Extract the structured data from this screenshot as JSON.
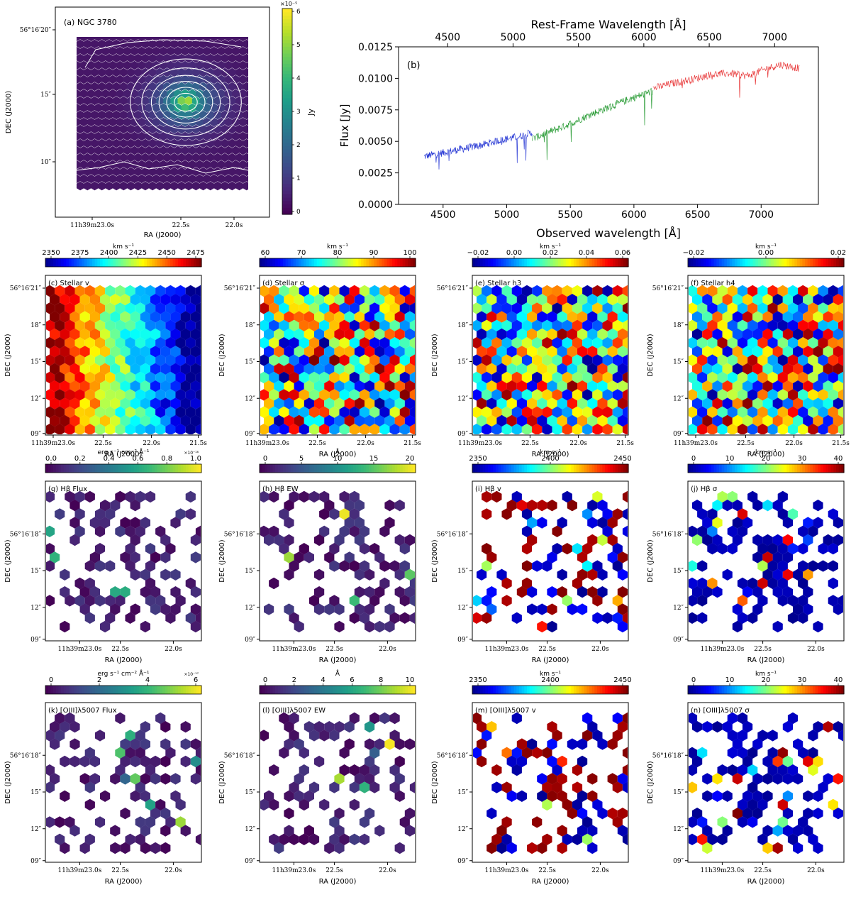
{
  "panel_a": {
    "label": "(a) NGC 3780",
    "xlabel": "RA (J2000)",
    "ylabel": "DEC (J2000)",
    "xticks": [
      "11h39m23.0s",
      "22.5s",
      "22.0s"
    ],
    "yticks": [
      "56°16′20″",
      "15″",
      "10″"
    ],
    "colorbar_label": "Jy",
    "colorbar_exp": "×10⁻⁵",
    "colorbar_ticks": [
      "0",
      "1",
      "2",
      "3",
      "4",
      "5",
      "6"
    ],
    "colormap": "viridis"
  },
  "chart_data": [
    {
      "type": "line",
      "title_top_axis": "Rest-Frame Wavelength [Å]",
      "label": "(b)",
      "xlabel": "Observed wavelength [Å]",
      "ylabel": "Flux [Jy]",
      "xlim": [
        4150,
        7450
      ],
      "ylim": [
        0.0,
        0.0125
      ],
      "xticks": [
        4500,
        5000,
        5500,
        6000,
        6500,
        7000
      ],
      "yticks": [
        0.0,
        0.0025,
        0.005,
        0.0075,
        0.01,
        0.0125
      ],
      "ytick_labels": [
        "0.0000",
        "0.0025",
        "0.0050",
        "0.0075",
        "0.0100",
        "0.0125"
      ],
      "top_xticks": [
        4500,
        5000,
        5500,
        6000,
        6500,
        7000
      ],
      "series": [
        {
          "color": "#2f3fd6",
          "x": [
            4350,
            4500,
            4650,
            4800,
            4950,
            5100,
            5200
          ],
          "y": [
            0.0038,
            0.0041,
            0.0044,
            0.0047,
            0.0051,
            0.0054,
            0.0057
          ]
        },
        {
          "color": "#2e9e3a",
          "x": [
            5200,
            5350,
            5500,
            5650,
            5800,
            5950,
            6150
          ],
          "y": [
            0.0052,
            0.0058,
            0.0064,
            0.0071,
            0.0077,
            0.0083,
            0.009
          ]
        },
        {
          "color": "#e8393a",
          "x": [
            6150,
            6300,
            6450,
            6600,
            6750,
            6900,
            7050,
            7150,
            7300
          ],
          "y": [
            0.0092,
            0.0096,
            0.0099,
            0.0103,
            0.0104,
            0.0102,
            0.0108,
            0.0111,
            0.0108
          ]
        }
      ]
    }
  ],
  "maps": [
    {
      "label": "(c) Stellar v",
      "unit": "km s⁻¹",
      "cb_ticks": [
        "2350",
        "2375",
        "2400",
        "2425",
        "2450",
        "2475"
      ],
      "cmap": "jet",
      "kind": "full",
      "pattern": "gradient",
      "exp": ""
    },
    {
      "label": "(d) Stellar σ",
      "unit": "km s⁻¹",
      "cb_ticks": [
        "60",
        "70",
        "80",
        "90",
        "100"
      ],
      "cmap": "jet",
      "kind": "full",
      "pattern": "noise",
      "exp": ""
    },
    {
      "label": "(e) Stellar h3",
      "unit": "km s⁻¹",
      "cb_ticks": [
        "−0.02",
        "0.00",
        "0.02",
        "0.04",
        "0.06"
      ],
      "cmap": "jet",
      "kind": "full",
      "pattern": "noise",
      "exp": ""
    },
    {
      "label": "(f) Stellar h4",
      "unit": "km s⁻¹",
      "cb_ticks": [
        "−0.02",
        "0.00",
        "0.02"
      ],
      "cmap": "jet",
      "kind": "full",
      "pattern": "noise",
      "exp": ""
    },
    {
      "label": "(g) Hβ Flux",
      "unit": "erg s⁻¹ cm⁻² Å⁻¹",
      "cb_ticks": [
        "0.0",
        "0.2",
        "0.4",
        "0.6",
        "0.8",
        "1.0"
      ],
      "cmap": "viridis",
      "kind": "sparse",
      "pattern": "low",
      "exp": "×10⁻¹⁶"
    },
    {
      "label": "(h) Hβ EW",
      "unit": "Å",
      "cb_ticks": [
        "0",
        "5",
        "10",
        "15",
        "20"
      ],
      "cmap": "viridis",
      "kind": "sparse",
      "pattern": "low",
      "exp": ""
    },
    {
      "label": "(i) Hβ v",
      "unit": "km s⁻¹",
      "cb_ticks": [
        "2350",
        "2400",
        "2450"
      ],
      "cmap": "jet",
      "kind": "sparse",
      "pattern": "bimodal",
      "exp": ""
    },
    {
      "label": "(j) Hβ σ",
      "unit": "km s⁻¹",
      "cb_ticks": [
        "0",
        "10",
        "20",
        "30",
        "40"
      ],
      "cmap": "jet",
      "kind": "sparse",
      "pattern": "lowjet",
      "exp": ""
    },
    {
      "label": "(k) [OIII]λ5007 Flux",
      "unit": "erg s⁻¹ cm⁻² Å⁻¹",
      "cb_ticks": [
        "0",
        "2",
        "4",
        "6"
      ],
      "cmap": "viridis",
      "kind": "sparse",
      "pattern": "low",
      "exp": "×10⁻¹⁷"
    },
    {
      "label": "(l) [OIII]λ5007 EW",
      "unit": "Å",
      "cb_ticks": [
        "0",
        "2",
        "4",
        "6",
        "8",
        "10"
      ],
      "cmap": "viridis",
      "kind": "sparse",
      "pattern": "low",
      "exp": ""
    },
    {
      "label": "(m) [OIII]λ5007 v",
      "unit": "km s⁻¹",
      "cb_ticks": [
        "2350",
        "2400",
        "2450"
      ],
      "cmap": "jet",
      "kind": "sparse",
      "pattern": "bimodal",
      "exp": ""
    },
    {
      "label": "(n) [OIII]λ5007 σ",
      "unit": "km s⁻¹",
      "cb_ticks": [
        "0",
        "10",
        "20",
        "30",
        "40"
      ],
      "cmap": "jet",
      "kind": "sparse",
      "pattern": "lowjet",
      "exp": ""
    }
  ],
  "map_axes": {
    "xlabel": "RA (J2000)",
    "ylabel": "DEC (J2000)",
    "full_xticks": [
      "11h39m23.0s",
      "22.5s",
      "22.0s",
      "21.5s"
    ],
    "full_yticks": [
      "56°16′21″",
      "18″",
      "15″",
      "12″",
      "09″"
    ],
    "sparse_xticks": [
      "11h39m23.0s",
      "22.5s",
      "22.0s"
    ],
    "sparse_yticks": [
      "56°16′18″",
      "15″",
      "12″",
      "09″"
    ]
  }
}
